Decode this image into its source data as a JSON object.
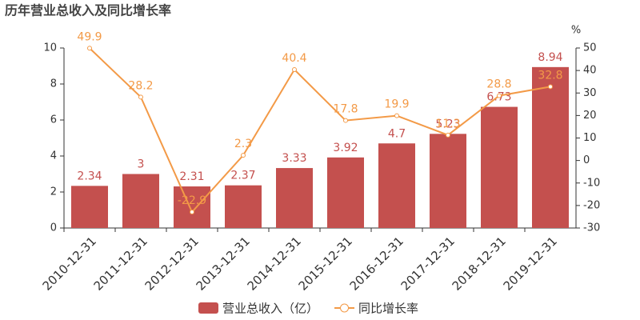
{
  "chart_data": {
    "type": "bar_line",
    "title": "历年营业总收入及同比增长率",
    "y2_unit": "%",
    "categories": [
      "2010-12-31",
      "2011-12-31",
      "2012-12-31",
      "2013-12-31",
      "2014-12-31",
      "2015-12-31",
      "2016-12-31",
      "2017-12-31",
      "2018-12-31",
      "2019-12-31"
    ],
    "series": [
      {
        "name": "营业总收入（亿）",
        "type": "bar",
        "color": "#c4504e",
        "values": [
          2.34,
          3,
          2.31,
          2.37,
          3.33,
          3.92,
          4.7,
          5.23,
          6.73,
          8.94
        ]
      },
      {
        "name": "同比增长率",
        "type": "line",
        "axis": "y2",
        "color": "#f39a47",
        "values": [
          49.9,
          28.2,
          -22.9,
          2.3,
          40.4,
          17.8,
          19.9,
          11.3,
          28.8,
          32.8
        ]
      }
    ],
    "ylim": [
      0,
      10
    ],
    "yticks": [
      0,
      2,
      4,
      6,
      8,
      10
    ],
    "y2lim": [
      -30,
      50
    ],
    "y2ticks": [
      -30,
      -20,
      -10,
      0,
      10,
      20,
      30,
      40,
      50
    ],
    "grid": false
  }
}
